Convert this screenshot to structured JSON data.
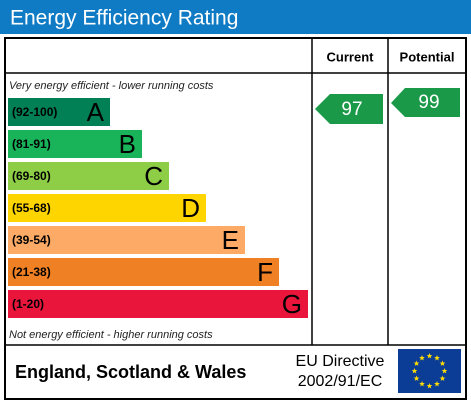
{
  "title": "Energy Efficiency Rating",
  "header": {
    "current": "Current",
    "potential": "Potential"
  },
  "top_note": "Very energy efficient - lower running costs",
  "bottom_note": "Not energy efficient - higher running costs",
  "bands": [
    {
      "range": "(92-100)",
      "letter": "A",
      "color": "#008054"
    },
    {
      "range": "(81-91)",
      "letter": "B",
      "color": "#19b459"
    },
    {
      "range": "(69-80)",
      "letter": "C",
      "color": "#8dce46"
    },
    {
      "range": "(55-68)",
      "letter": "D",
      "color": "#ffd500"
    },
    {
      "range": "(39-54)",
      "letter": "E",
      "color": "#fcaa65"
    },
    {
      "range": "(21-38)",
      "letter": "F",
      "color": "#ef8023"
    },
    {
      "range": "(1-20)",
      "letter": "G",
      "color": "#e9153b"
    }
  ],
  "current": {
    "value": "97",
    "color": "#1a9a48"
  },
  "potential": {
    "value": "99",
    "color": "#1a9a48"
  },
  "footer": {
    "region": "England, Scotland & Wales",
    "directive_line1": "EU Directive",
    "directive_line2": "2002/91/EC"
  }
}
